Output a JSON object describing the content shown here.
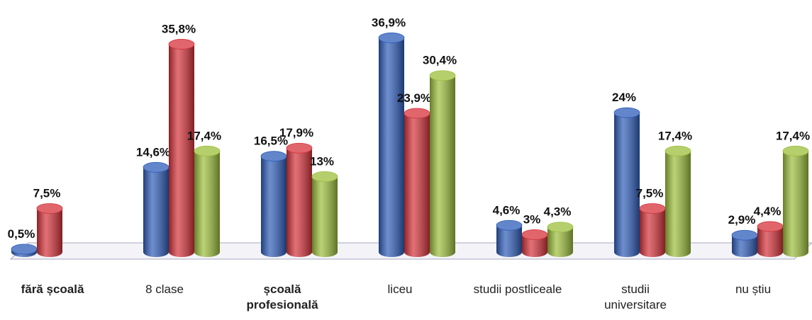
{
  "chart_data": {
    "type": "bar3d",
    "categories": [
      "fără școală",
      "8 clase",
      "școală profesională",
      "liceu",
      "studii postliceale",
      "studii universitare",
      "nu știu"
    ],
    "series": [
      {
        "color": "#2f5db9",
        "values": [
          0.5,
          14.6,
          16.5,
          36.9,
          4.6,
          24,
          2.9
        ],
        "value_labels": [
          "0,5%",
          "14,6%",
          "16,5%",
          "36,9%",
          "4,6%",
          "24%",
          "2,9%"
        ]
      },
      {
        "color": "#d5333b",
        "values": [
          7.5,
          35.8,
          17.9,
          23.9,
          3,
          7.5,
          4.4
        ],
        "value_labels": [
          "7,5%",
          "35,8%",
          "17,9%",
          "23,9%",
          "3%",
          "7,5%",
          "4,4%"
        ]
      },
      {
        "color": "#9dbf3c",
        "values": [
          null,
          17.4,
          13,
          30.4,
          4.3,
          17.4,
          17.4
        ],
        "value_labels": [
          null,
          "17,4%",
          "13%",
          "30,4%",
          "4,3%",
          "17,4%",
          "17,4%"
        ]
      }
    ],
    "ylim": [
      0,
      40
    ]
  }
}
